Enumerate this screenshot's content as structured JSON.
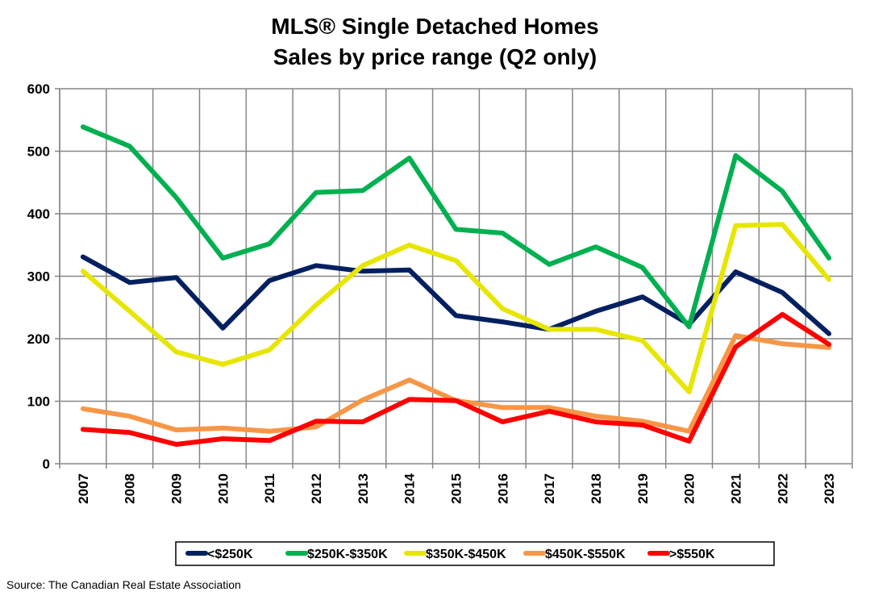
{
  "chart_data": {
    "type": "line",
    "title": "MLS® Single Detached Homes",
    "subtitle": "Sales by price range (Q2 only)",
    "xlabel": "",
    "ylabel": "",
    "ylim": [
      0,
      600
    ],
    "yticks": [
      0,
      100,
      200,
      300,
      400,
      500,
      600
    ],
    "grid": true,
    "legend_position": "bottom",
    "categories": [
      "2007",
      "2008",
      "2009",
      "2010",
      "2011",
      "2012",
      "2013",
      "2014",
      "2015",
      "2016",
      "2017",
      "2018",
      "2019",
      "2020",
      "2021",
      "2022",
      "2023"
    ],
    "series": [
      {
        "name": "<$250K",
        "color": "#002060",
        "values": [
          331,
          290,
          298,
          217,
          293,
          317,
          308,
          310,
          237,
          227,
          215,
          244,
          267,
          223,
          307,
          274,
          208
        ]
      },
      {
        "name": "$250K-$350K",
        "color": "#00B050",
        "values": [
          539,
          508,
          426,
          329,
          352,
          434,
          437,
          489,
          375,
          369,
          319,
          347,
          314,
          219,
          493,
          436,
          329
        ]
      },
      {
        "name": "$350K-$450K",
        "color": "#E6E600",
        "values": [
          308,
          244,
          179,
          159,
          182,
          254,
          317,
          350,
          325,
          248,
          215,
          215,
          197,
          115,
          381,
          383,
          295
        ]
      },
      {
        "name": "$450K-$550K",
        "color": "#F79646",
        "values": [
          88,
          76,
          54,
          57,
          52,
          59,
          102,
          134,
          101,
          90,
          90,
          76,
          68,
          52,
          205,
          192,
          186
        ]
      },
      {
        "name": ">$550K",
        "color": "#FF0000",
        "values": [
          55,
          50,
          31,
          40,
          37,
          68,
          67,
          103,
          101,
          67,
          84,
          67,
          62,
          36,
          187,
          239,
          191
        ]
      }
    ]
  },
  "source": "Source: The Canadian Real Estate Association"
}
